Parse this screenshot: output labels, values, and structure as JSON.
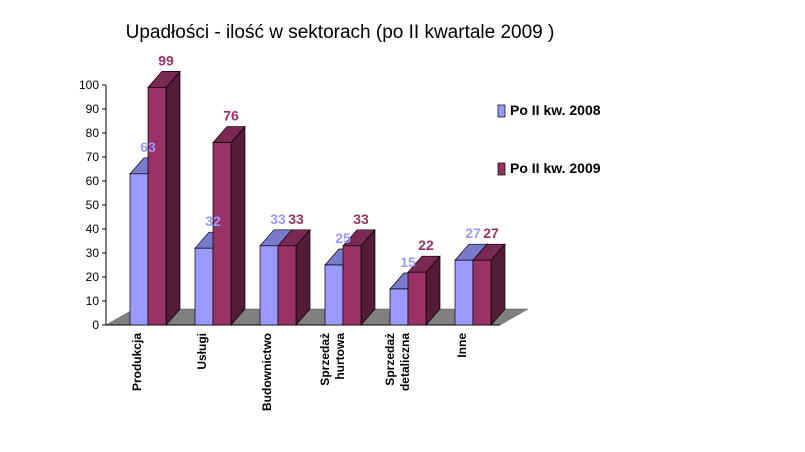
{
  "chart_data": {
    "type": "bar",
    "title": "Upadłości - ilość w sektorach (po II kwartale 2009 )",
    "categories": [
      [
        "Produkcja"
      ],
      [
        "Usługi"
      ],
      [
        "Budownictwo"
      ],
      [
        "Sprzedaż",
        "hurtowa"
      ],
      [
        "Sprzedaż",
        "detaliczna"
      ],
      [
        "Inne"
      ]
    ],
    "series": [
      {
        "name": "Po II kw. 2008",
        "values": [
          63,
          32,
          33,
          25,
          15,
          27
        ],
        "color": "#9999ff",
        "label_color": "#9999ff"
      },
      {
        "name": "Po II kw. 2009",
        "values": [
          99,
          76,
          33,
          33,
          22,
          27
        ],
        "color": "#993366",
        "label_color": "#993366"
      }
    ],
    "ylim": [
      0,
      100
    ],
    "yticks": [
      0,
      10,
      20,
      30,
      40,
      50,
      60,
      70,
      80,
      90,
      100
    ],
    "xlabel": "",
    "ylabel": "",
    "grid": false,
    "legend_position": "right",
    "floor_color": "#808080",
    "chart_style": "3d-clustered-column"
  }
}
